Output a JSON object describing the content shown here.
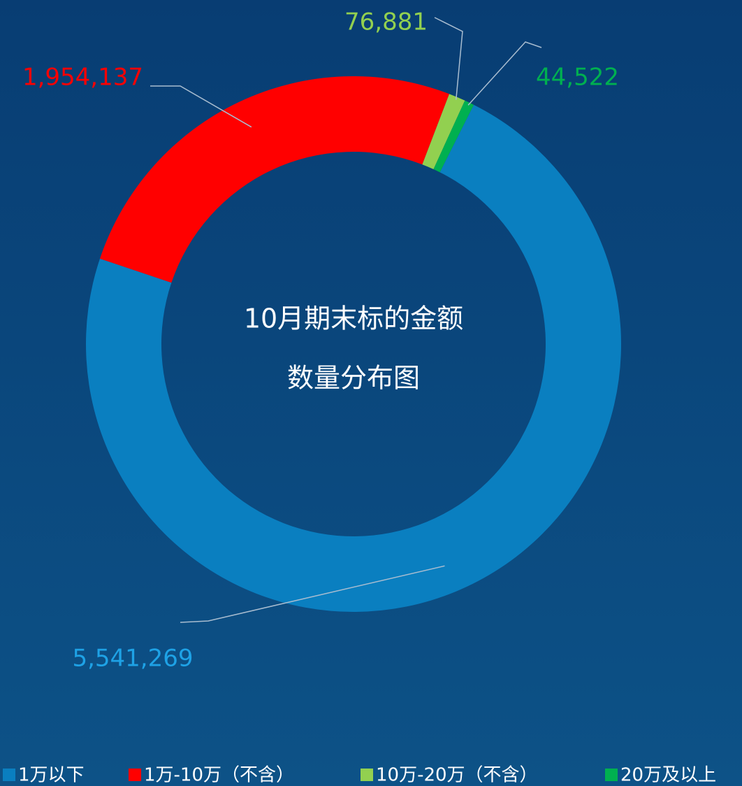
{
  "chart_data": {
    "type": "donut",
    "title": [
      "10月期末标的金额",
      "数量分布图"
    ],
    "series": [
      {
        "name": "1万以下",
        "color": "#0a7fc0",
        "label_color": "#1ea2e6"
      },
      {
        "name": "1万-10万（不含）",
        "color": "#ff0000",
        "label_color": "#ff0000"
      },
      {
        "name": "10万-20万（不含）",
        "color": "#92d050",
        "label_color": "#92d050"
      },
      {
        "name": "20万及以上",
        "color": "#00b050",
        "label_color": "#00b050"
      }
    ],
    "values": [
      5541269,
      1954137,
      76881,
      44522
    ],
    "value_labels": [
      "5,541,269",
      "1,954,137",
      "76,881",
      "44,522"
    ],
    "legend": "bottom"
  }
}
